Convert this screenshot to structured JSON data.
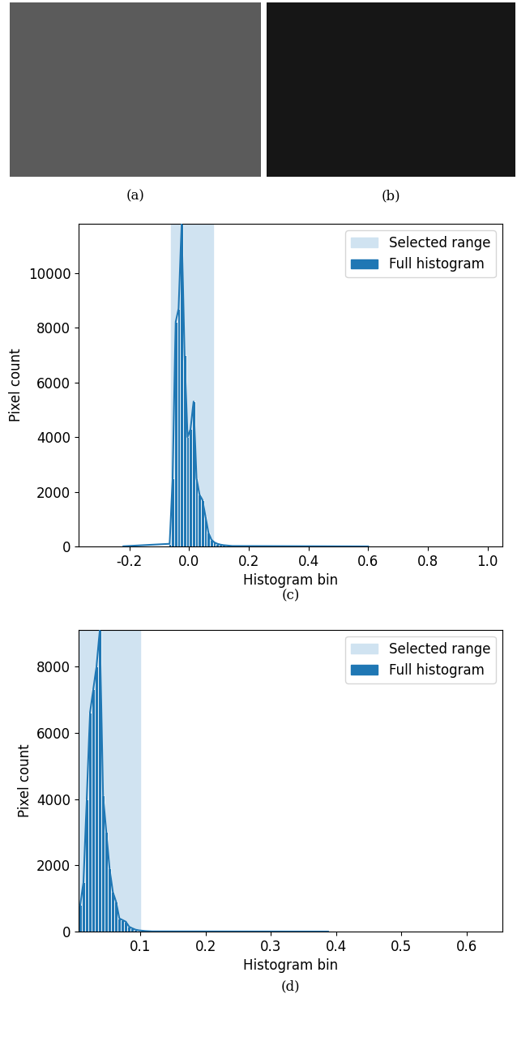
{
  "chart_data": [
    {
      "type": "image",
      "caption": "(a)",
      "color": "#5b5b5b"
    },
    {
      "type": "image",
      "caption": "(b)",
      "color": "#161616"
    },
    {
      "type": "histogram",
      "caption": "(c)",
      "x_label": "Histogram bin",
      "y_label": "Pixel count",
      "bins": [
        -0.37,
        -0.07,
        -0.06,
        -0.05,
        -0.04,
        -0.03,
        -0.02,
        -0.01,
        0.0,
        0.01,
        0.02,
        0.03,
        0.04,
        0.05,
        0.06,
        0.07,
        0.08,
        0.09,
        0.1,
        0.11,
        0.12,
        0.13,
        0.14,
        0.15,
        1.05
      ],
      "counts": [
        10,
        100,
        2500,
        8200,
        8700,
        11800,
        7000,
        4000,
        4300,
        5300,
        2500,
        1900,
        1700,
        1100,
        500,
        250,
        150,
        100,
        70,
        50,
        40,
        30,
        20,
        5
      ],
      "selected_range": [
        -0.06,
        0.08
      ],
      "series": [
        {
          "name": "Selected range",
          "color": "#d0e3f1"
        },
        {
          "name": "Full histogram",
          "color": "#1f77b4"
        }
      ],
      "xlim": [
        -0.37,
        1.05
      ],
      "xticks": [
        -0.2,
        0.0,
        0.2,
        0.4,
        0.6,
        0.8,
        1.0
      ],
      "ylim": [
        0,
        11800
      ],
      "yticks": [
        0,
        2000,
        4000,
        6000,
        8000,
        10000
      ],
      "legend": "upper right"
    },
    {
      "type": "histogram",
      "caption": "(d)",
      "x_label": "Histogram bin",
      "y_label": "Pixel count",
      "bins": [
        0.005,
        0.01,
        0.015,
        0.02,
        0.025,
        0.03,
        0.035,
        0.04,
        0.045,
        0.05,
        0.055,
        0.06,
        0.065,
        0.07,
        0.075,
        0.08,
        0.085,
        0.09,
        0.095,
        0.1,
        0.105,
        0.11,
        0.115,
        0.12,
        0.655
      ],
      "counts": [
        800,
        1500,
        4000,
        6600,
        7300,
        8000,
        9100,
        4100,
        3000,
        1900,
        1200,
        900,
        400,
        350,
        300,
        150,
        100,
        60,
        40,
        30,
        20,
        15,
        10,
        5
      ],
      "selected_range": [
        0.005,
        0.1
      ],
      "series": [
        {
          "name": "Selected range",
          "color": "#d0e3f1"
        },
        {
          "name": "Full histogram",
          "color": "#1f77b4"
        }
      ],
      "xlim": [
        0.005,
        0.655
      ],
      "xticks": [
        0.1,
        0.2,
        0.3,
        0.4,
        0.5,
        0.6
      ],
      "ylim": [
        0,
        9100
      ],
      "yticks": [
        0,
        2000,
        4000,
        6000,
        8000
      ],
      "legend": "upper right"
    }
  ]
}
